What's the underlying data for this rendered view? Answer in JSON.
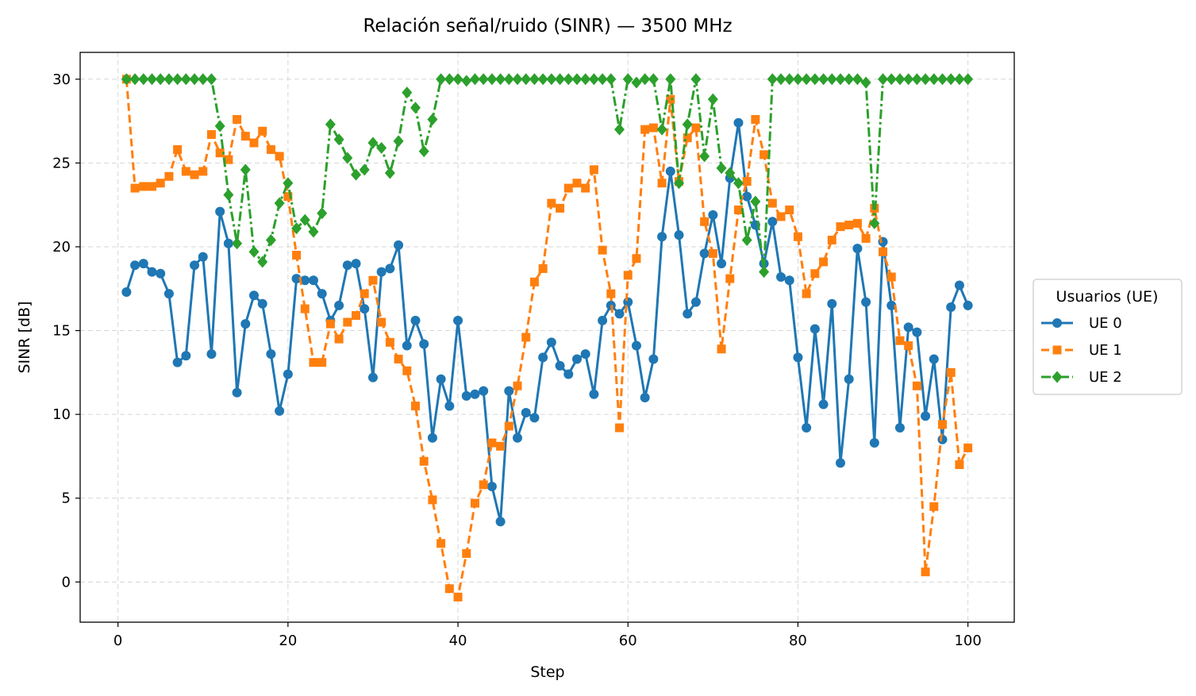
{
  "chart_data": {
    "type": "line",
    "title": "Relación señal/ruido (SINR) — 3500 MHz",
    "xlabel": "Step",
    "ylabel": "SINR [dB]",
    "xlim": [
      -4.45,
      105.45
    ],
    "ylim": [
      -2.4,
      31.6
    ],
    "xticks": [
      0,
      20,
      40,
      60,
      80,
      100
    ],
    "yticks": [
      0,
      5,
      10,
      15,
      20,
      25,
      30
    ],
    "grid": true,
    "legend": {
      "title": "Usuarios (UE)",
      "placement": "outside-right"
    },
    "series": [
      {
        "name": "UE 0",
        "color": "#1f77b4",
        "marker": "circle",
        "dash": "solid",
        "x": [
          1,
          2,
          3,
          4,
          5,
          6,
          7,
          8,
          9,
          10,
          11,
          12,
          13,
          14,
          15,
          16,
          17,
          18,
          19,
          20,
          21,
          22,
          23,
          24,
          25,
          26,
          27,
          28,
          29,
          30,
          31,
          32,
          33,
          34,
          35,
          36,
          37,
          38,
          39,
          40,
          41,
          42,
          43,
          44,
          45,
          46,
          47,
          48,
          49,
          50,
          51,
          52,
          53,
          54,
          55,
          56,
          57,
          58,
          59,
          60,
          61,
          62,
          63,
          64,
          65,
          66,
          67,
          68,
          69,
          70,
          71,
          72,
          73,
          74,
          75,
          76,
          77,
          78,
          79,
          80,
          81,
          82,
          83,
          84,
          85,
          86,
          87,
          88,
          89,
          90,
          91,
          92,
          93,
          94,
          95,
          96,
          97,
          98,
          99,
          100
        ],
        "values": [
          17.3,
          18.9,
          19.0,
          18.5,
          18.4,
          17.2,
          13.1,
          13.5,
          18.9,
          19.4,
          13.6,
          22.1,
          20.2,
          11.3,
          15.4,
          17.1,
          16.6,
          13.6,
          10.2,
          12.4,
          18.1,
          18.0,
          18.0,
          17.2,
          15.6,
          16.5,
          18.9,
          19.0,
          16.3,
          12.2,
          18.5,
          18.7,
          20.1,
          14.1,
          15.6,
          14.2,
          8.6,
          12.1,
          10.5,
          15.6,
          11.1,
          11.2,
          11.4,
          5.7,
          3.6,
          11.4,
          8.6,
          10.1,
          9.8,
          13.4,
          14.3,
          12.9,
          12.4,
          13.3,
          13.6,
          11.2,
          15.6,
          16.5,
          16.0,
          16.7,
          14.1,
          11.0,
          13.3,
          20.6,
          24.5,
          20.7,
          16.0,
          16.7,
          19.6,
          21.9,
          19.0,
          24.1,
          27.4,
          23.0,
          21.3,
          19.0,
          21.5,
          18.2,
          18.0,
          13.4,
          9.2,
          15.1,
          10.6,
          16.6,
          7.1,
          12.1,
          19.9,
          16.7,
          8.3,
          20.3,
          16.5,
          9.2,
          15.2,
          14.9,
          9.9,
          13.3,
          8.5,
          16.4,
          17.7,
          16.5
        ]
      },
      {
        "name": "UE 1",
        "color": "#ff7f0e",
        "marker": "square",
        "dash": "dashed",
        "x": [
          1,
          2,
          3,
          4,
          5,
          6,
          7,
          8,
          9,
          10,
          11,
          12,
          13,
          14,
          15,
          16,
          17,
          18,
          19,
          20,
          21,
          22,
          23,
          24,
          25,
          26,
          27,
          28,
          29,
          30,
          31,
          32,
          33,
          34,
          35,
          36,
          37,
          38,
          39,
          40,
          41,
          42,
          43,
          44,
          45,
          46,
          47,
          48,
          49,
          50,
          51,
          52,
          53,
          54,
          55,
          56,
          57,
          58,
          59,
          60,
          61,
          62,
          63,
          64,
          65,
          66,
          67,
          68,
          69,
          70,
          71,
          72,
          73,
          74,
          75,
          76,
          77,
          78,
          79,
          80,
          81,
          82,
          83,
          84,
          85,
          86,
          87,
          88,
          89,
          90,
          91,
          92,
          93,
          94,
          95,
          96,
          97,
          98,
          99,
          100
        ],
        "values": [
          30.0,
          23.5,
          23.6,
          23.6,
          23.8,
          24.2,
          25.8,
          24.5,
          24.3,
          24.5,
          26.7,
          25.6,
          25.2,
          27.6,
          26.6,
          26.2,
          26.9,
          25.8,
          25.4,
          23.0,
          19.5,
          16.3,
          13.1,
          13.1,
          15.4,
          14.5,
          15.5,
          15.9,
          17.2,
          18.0,
          15.5,
          14.3,
          13.3,
          12.6,
          10.5,
          7.2,
          4.9,
          2.3,
          -0.4,
          -0.9,
          1.7,
          4.7,
          5.8,
          8.3,
          8.1,
          9.3,
          11.7,
          14.6,
          17.9,
          18.7,
          22.6,
          22.3,
          23.5,
          23.8,
          23.5,
          24.6,
          19.8,
          17.2,
          9.2,
          18.3,
          19.3,
          27.0,
          27.1,
          23.8,
          28.8,
          23.9,
          26.5,
          27.1,
          21.5,
          19.6,
          13.9,
          18.1,
          22.2,
          23.9,
          27.6,
          25.5,
          22.6,
          21.8,
          22.2,
          20.6,
          17.2,
          18.4,
          19.1,
          20.4,
          21.2,
          21.3,
          21.4,
          20.5,
          22.3,
          19.7,
          18.2,
          14.4,
          14.1,
          11.7,
          0.6,
          4.5,
          9.4,
          12.5,
          7.0,
          8.0
        ]
      },
      {
        "name": "UE 2",
        "color": "#2ca02c",
        "marker": "diamond",
        "dash": "dashdot",
        "x": [
          1,
          2,
          3,
          4,
          5,
          6,
          7,
          8,
          9,
          10,
          11,
          12,
          13,
          14,
          15,
          16,
          17,
          18,
          19,
          20,
          21,
          22,
          23,
          24,
          25,
          26,
          27,
          28,
          29,
          30,
          31,
          32,
          33,
          34,
          35,
          36,
          37,
          38,
          39,
          40,
          41,
          42,
          43,
          44,
          45,
          46,
          47,
          48,
          49,
          50,
          51,
          52,
          53,
          54,
          55,
          56,
          57,
          58,
          59,
          60,
          61,
          62,
          63,
          64,
          65,
          66,
          67,
          68,
          69,
          70,
          71,
          72,
          73,
          74,
          75,
          76,
          77,
          78,
          79,
          80,
          81,
          82,
          83,
          84,
          85,
          86,
          87,
          88,
          89,
          90,
          91,
          92,
          93,
          94,
          95,
          96,
          97,
          98,
          99,
          100
        ],
        "values": [
          30.0,
          30.0,
          30.0,
          30.0,
          30.0,
          30.0,
          30.0,
          30.0,
          30.0,
          30.0,
          30.0,
          27.2,
          23.1,
          20.2,
          24.6,
          19.7,
          19.1,
          20.4,
          22.6,
          23.8,
          21.1,
          21.6,
          20.9,
          22.0,
          27.3,
          26.4,
          25.3,
          24.3,
          24.6,
          26.2,
          25.9,
          24.4,
          26.3,
          29.2,
          28.3,
          25.7,
          27.6,
          30.0,
          30.0,
          30.0,
          29.9,
          30.0,
          30.0,
          30.0,
          30.0,
          30.0,
          30.0,
          30.0,
          30.0,
          30.0,
          30.0,
          30.0,
          30.0,
          30.0,
          30.0,
          30.0,
          30.0,
          30.0,
          27.0,
          30.0,
          29.8,
          30.0,
          30.0,
          27.0,
          30.0,
          23.8,
          27.3,
          30.0,
          25.4,
          28.8,
          24.7,
          24.4,
          23.8,
          20.4,
          22.7,
          18.5,
          30.0,
          30.0,
          30.0,
          30.0,
          30.0,
          30.0,
          30.0,
          30.0,
          30.0,
          30.0,
          30.0,
          29.8,
          21.4,
          30.0,
          30.0,
          30.0,
          30.0,
          30.0,
          30.0,
          30.0,
          30.0,
          30.0,
          30.0,
          30.0
        ]
      }
    ]
  }
}
